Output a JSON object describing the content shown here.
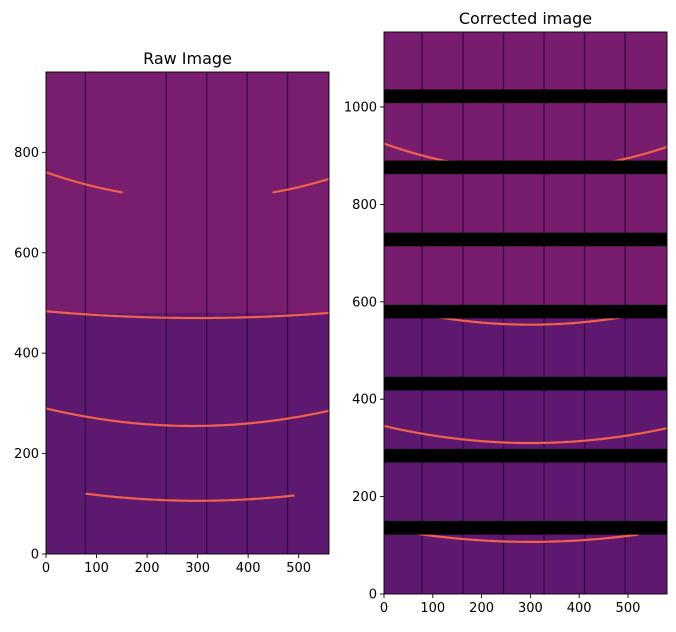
{
  "chart_data": [
    {
      "type": "heatmap",
      "title": "Raw Image",
      "xlim": [
        0,
        560
      ],
      "ylim": [
        0,
        960
      ],
      "xticks": [
        0,
        100,
        200,
        300,
        400,
        500
      ],
      "yticks": [
        0,
        200,
        400,
        600,
        800
      ],
      "colormap": "inferno",
      "colors": {
        "background_upper": "#791d6e",
        "background_lower": "#5d1870",
        "column_defect": "#2a0a3a",
        "arc": "#f0604a"
      },
      "upper_region_starts_at_y": 480,
      "column_defects_x": [
        78,
        238,
        318,
        398,
        478
      ],
      "arcs": [
        {
          "vertex_x": 300,
          "vertex_y": 106,
          "curvature": 0.00029,
          "x_range": [
            80,
            490
          ]
        },
        {
          "vertex_x": 290,
          "vertex_y": 255,
          "curvature": 0.000416,
          "x_range": [
            0,
            560
          ]
        },
        {
          "vertex_x": 300,
          "vertex_y": 470,
          "curvature": 0.00015,
          "x_range": [
            0,
            560
          ]
        },
        {
          "vertex_x": 300,
          "vertex_y": 707,
          "curvature": 0.000593,
          "x_range": [
            0,
            560
          ],
          "min_y": 720
        }
      ]
    },
    {
      "type": "heatmap",
      "title": "Corrected image",
      "xlim": [
        0,
        580
      ],
      "ylim": [
        0,
        1154
      ],
      "xticks": [
        0,
        100,
        200,
        300,
        400,
        500
      ],
      "yticks": [
        0,
        200,
        400,
        600,
        800,
        1000
      ],
      "colormap": "inferno",
      "colors": {
        "background_upper": "#781d6e",
        "background_lower": "#5e1870",
        "column_defect": "#2a0a3a",
        "arc": "#f0604a",
        "gap_band": "#000000"
      },
      "upper_region_starts_at_y": 594,
      "column_defects_x": [
        78,
        162,
        245,
        328,
        411,
        494
      ],
      "gap_bands_y": [
        [
          122,
          150
        ],
        [
          270,
          298
        ],
        [
          418,
          446
        ],
        [
          566,
          594
        ],
        [
          714,
          742
        ],
        [
          862,
          890
        ],
        [
          1008,
          1036
        ]
      ],
      "arcs": [
        {
          "vertex_x": 300,
          "vertex_y": 107,
          "curvature": 0.00031,
          "x_range": [
            70,
            520
          ]
        },
        {
          "vertex_x": 300,
          "vertex_y": 310,
          "curvature": 0.00039,
          "x_range": [
            0,
            580
          ]
        },
        {
          "vertex_x": 300,
          "vertex_y": 553,
          "curvature": 0.000433,
          "x_range": [
            0,
            580
          ]
        },
        {
          "vertex_x": 300,
          "vertex_y": 871,
          "curvature": 0.0006,
          "x_range": [
            0,
            580
          ]
        }
      ]
    }
  ]
}
